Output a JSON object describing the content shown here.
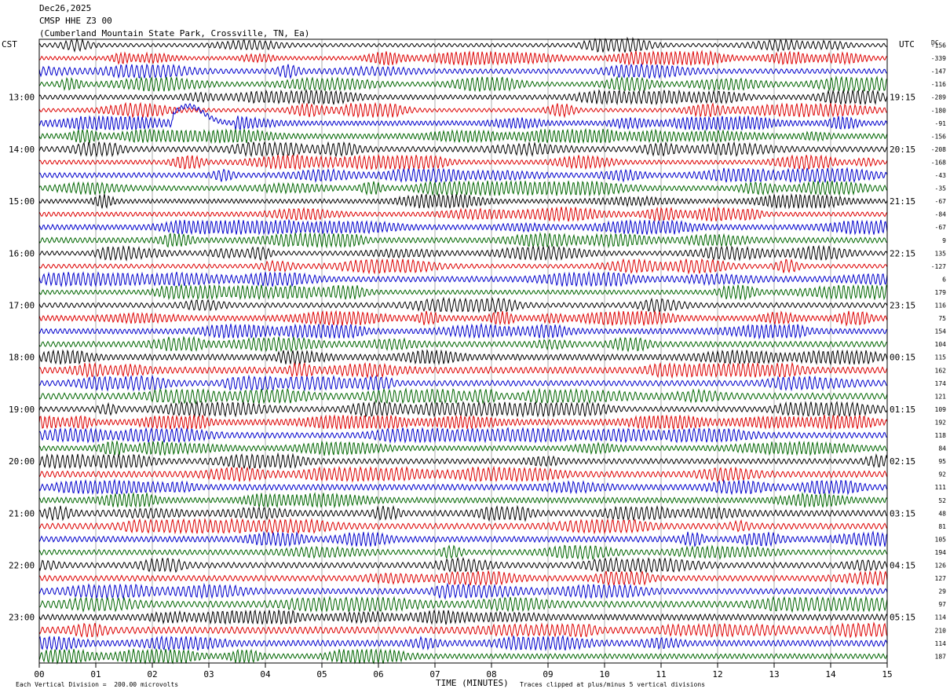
{
  "header": {
    "date": "Dec26,2025",
    "station": "CMSP HHE Z3 00",
    "location": "(Cumberland Mountain State Park, Crossville, TN, Ea)"
  },
  "left_zone_label": "CST",
  "right_zone_label": "UTC",
  "dc_label": "DC",
  "footer": {
    "scale_note": "Each Vertical Division =  200.00 microvolts",
    "x_axis_title": "TIME (MINUTES)",
    "clip_note": "Traces clipped at plus/minus 5 vertical divisions"
  },
  "chart_data": {
    "type": "line",
    "title": "CMSP HHE Z3 00",
    "xlabel": "TIME (MINUTES)",
    "xlim": [
      0,
      15
    ],
    "x_ticks": [
      "00",
      "01",
      "02",
      "03",
      "04",
      "05",
      "06",
      "07",
      "08",
      "09",
      "10",
      "11",
      "12",
      "13",
      "14",
      "15"
    ],
    "rows_per_hour": 4,
    "trace_colors": [
      "#000000",
      "#dd0000",
      "#0000cc",
      "#006600"
    ],
    "left_hour_labels": [
      "13:00",
      "14:00",
      "15:00",
      "16:00",
      "17:00",
      "18:00",
      "19:00",
      "20:00",
      "21:00",
      "22:00",
      "23:00"
    ],
    "right_hour_labels": [
      "19:15",
      "20:15",
      "21:15",
      "22:15",
      "23:15",
      "00:15",
      "01:15",
      "02:15",
      "03:15",
      "04:15",
      "05:15"
    ],
    "dc_offsets": [
      -156,
      -339,
      -147,
      -116,
      -289,
      -180,
      -91,
      -156,
      -208,
      -168,
      -43,
      -35,
      -67,
      -84,
      -67,
      9,
      135,
      -127,
      6,
      179,
      116,
      75,
      154,
      104,
      115,
      162,
      174,
      121,
      109,
      192,
      118,
      84,
      95,
      92,
      111,
      52,
      48,
      81,
      105,
      194,
      126,
      127,
      29,
      97,
      114,
      210,
      114,
      187
    ],
    "clip_divisions": 5,
    "microvolts_per_division": 200.0
  }
}
